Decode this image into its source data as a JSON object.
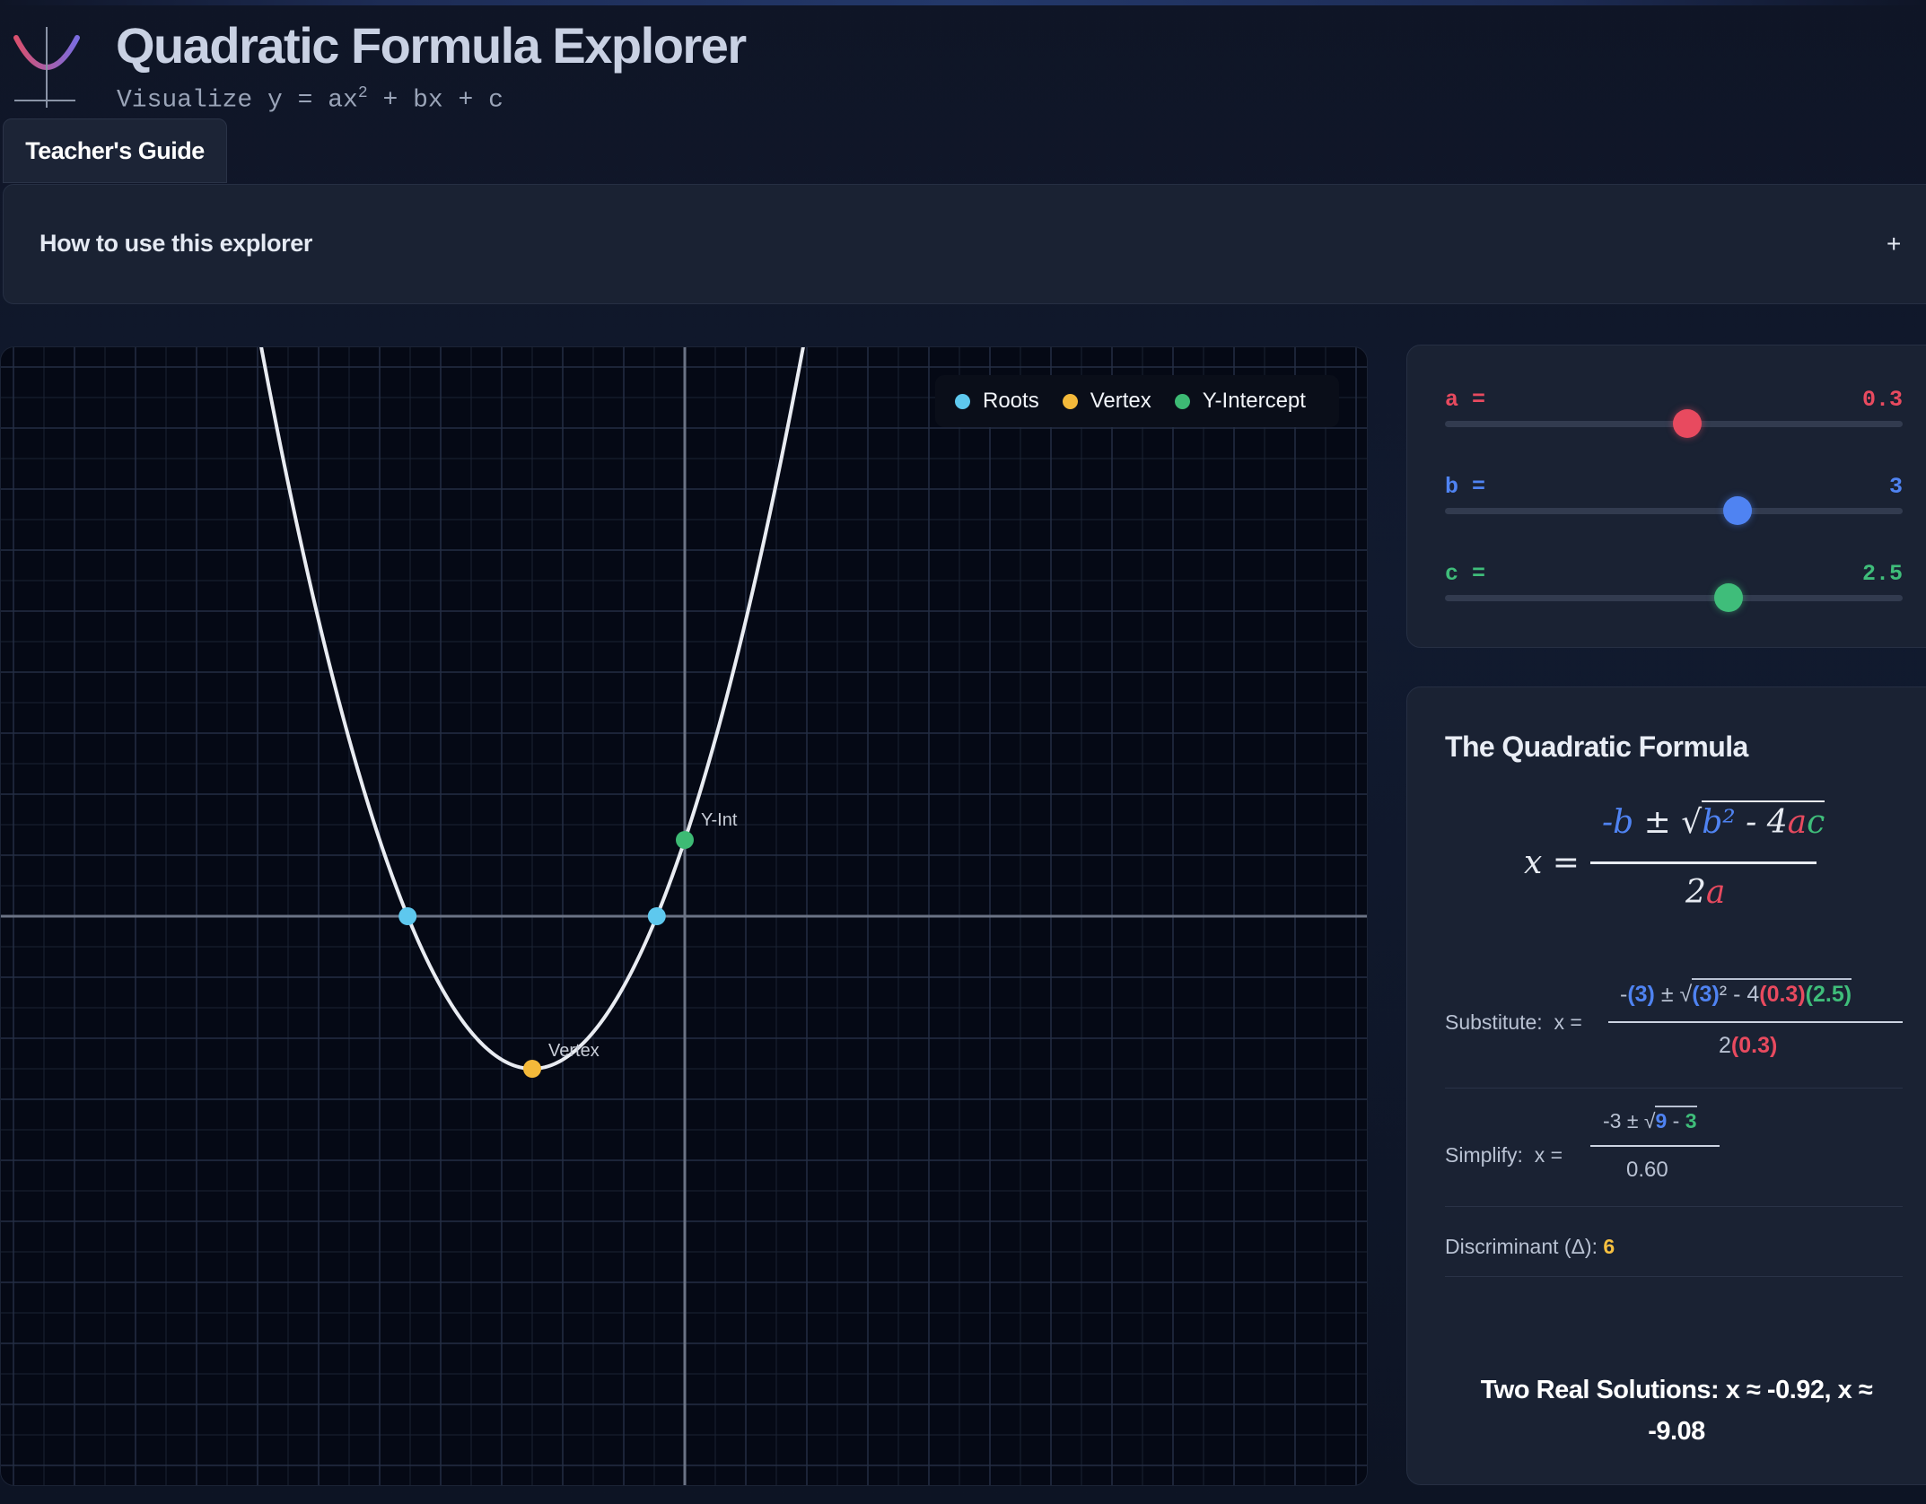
{
  "app": {
    "title": "Quadratic Formula Explorer",
    "subtitle_prefix": "Visualize y = ax",
    "subtitle_exp": "2",
    "subtitle_suffix": " + bx + c"
  },
  "guide_tab": {
    "label": "Teacher's Guide"
  },
  "howto": {
    "label": "How to use this explorer",
    "toggle": "+"
  },
  "legend": {
    "items": [
      {
        "label": "Roots",
        "color": "#5ec8ee"
      },
      {
        "label": "Vertex",
        "color": "#f4b93a"
      },
      {
        "label": "Y-Intercept",
        "color": "#3dba74"
      }
    ]
  },
  "graph": {
    "y_int_label": "Y-Int",
    "vertex_label": "Vertex",
    "curve_color": "#e9ecf2"
  },
  "sliders": {
    "a": {
      "label": "a =",
      "value": "0.3",
      "fraction": 0.53,
      "color": "#e84a5f"
    },
    "b": {
      "label": "b =",
      "value": "3",
      "fraction": 0.64,
      "color": "#4f83f2"
    },
    "c": {
      "label": "c =",
      "value": "2.5",
      "fraction": 0.62,
      "color": "#3fbd7a"
    }
  },
  "formula": {
    "title": "The Quadratic Formula",
    "x_eq": "x =",
    "neg": "-",
    "b": "b",
    "pm": " ± √",
    "b2": "b²",
    "minus4": " - 4",
    "a": "a",
    "c": "c",
    "den_2": "2",
    "den_a": "a"
  },
  "substitute": {
    "label": "Substitute:",
    "x_eq": "x =",
    "num_neg": "-",
    "num_b": "(3)",
    "num_pm": " ± √",
    "num_b2": "(3)",
    "num_sq": "² - 4",
    "num_a": "(0.3)",
    "num_c": "(2.5)",
    "den_2": "2",
    "den_a": "(0.3)"
  },
  "simplify": {
    "label": "Simplify:",
    "x_eq": "x =",
    "num_prefix": "-3 ± √",
    "num_b2": "9",
    "num_minus": " - ",
    "num_4ac": "3",
    "den": "0.60"
  },
  "discriminant": {
    "label": "Discriminant (Δ): ",
    "value": "6"
  },
  "solution": {
    "text": "Two Real Solutions: x ≈ -0.92, x ≈ -9.08"
  }
}
